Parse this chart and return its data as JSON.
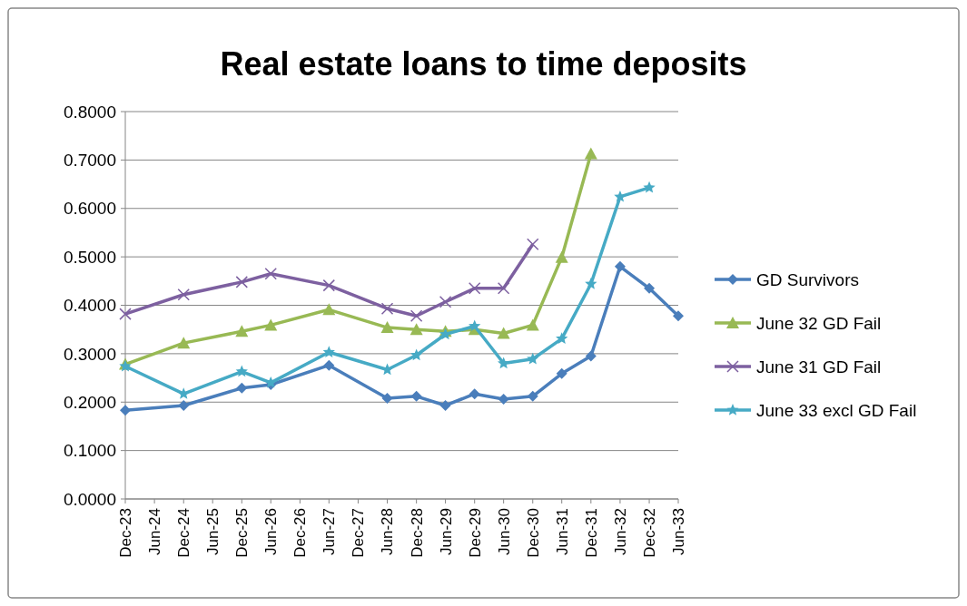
{
  "chart_data": {
    "type": "line",
    "title": "Real estate loans to time deposits",
    "x": [
      "1923-12",
      "1924-12",
      "1925-12",
      "1926-06",
      "1927-06",
      "1928-06",
      "1928-12",
      "1929-06",
      "1929-12",
      "1930-06",
      "1930-12",
      "1931-06",
      "1931-12",
      "1932-06",
      "1932-12",
      "1933-06"
    ],
    "series": [
      {
        "name": "GD Survivors",
        "color": "#4a7ebb",
        "marker": "diamond",
        "values": [
          0.183,
          0.193,
          0.229,
          0.236,
          0.276,
          0.208,
          0.212,
          0.193,
          0.217,
          0.206,
          0.212,
          0.259,
          0.295,
          0.48,
          0.435,
          0.378
        ]
      },
      {
        "name": "June 32 GD Fail",
        "color": "#98b954",
        "marker": "triangle",
        "values": [
          0.278,
          0.322,
          0.346,
          0.359,
          0.391,
          0.354,
          0.35,
          0.346,
          0.35,
          0.342,
          0.359,
          0.499,
          0.713,
          null,
          null,
          null
        ]
      },
      {
        "name": "June 31 GD Fail",
        "color": "#7d60a0",
        "marker": "cross",
        "values": [
          0.382,
          0.422,
          0.448,
          0.465,
          0.441,
          0.393,
          0.378,
          0.407,
          0.435,
          0.435,
          0.526,
          null,
          null,
          null,
          null,
          null
        ]
      },
      {
        "name": "June 33 excl GD Fail",
        "color": "#46aac5",
        "marker": "star",
        "values": [
          0.274,
          0.217,
          0.263,
          0.24,
          0.303,
          0.267,
          0.297,
          0.34,
          0.357,
          0.28,
          0.289,
          0.331,
          0.444,
          0.624,
          0.643,
          null
        ]
      }
    ],
    "xlim": [
      "1923-12",
      "1933-06"
    ],
    "xticks": [
      {
        "value": "1923-12",
        "label": "Dec-23"
      },
      {
        "value": "1924-06",
        "label": "Jun-24"
      },
      {
        "value": "1924-12",
        "label": "Dec-24"
      },
      {
        "value": "1925-06",
        "label": "Jun-25"
      },
      {
        "value": "1925-12",
        "label": "Dec-25"
      },
      {
        "value": "1926-06",
        "label": "Jun-26"
      },
      {
        "value": "1926-12",
        "label": "Dec-26"
      },
      {
        "value": "1927-06",
        "label": "Jun-27"
      },
      {
        "value": "1927-12",
        "label": "Dec-27"
      },
      {
        "value": "1928-06",
        "label": "Jun-28"
      },
      {
        "value": "1928-12",
        "label": "Dec-28"
      },
      {
        "value": "1929-06",
        "label": "Jun-29"
      },
      {
        "value": "1929-12",
        "label": "Dec-29"
      },
      {
        "value": "1930-06",
        "label": "Jun-30"
      },
      {
        "value": "1930-12",
        "label": "Dec-30"
      },
      {
        "value": "1931-06",
        "label": "Jun-31"
      },
      {
        "value": "1931-12",
        "label": "Dec-31"
      },
      {
        "value": "1932-06",
        "label": "Jun-32"
      },
      {
        "value": "1932-12",
        "label": "Dec-32"
      },
      {
        "value": "1933-06",
        "label": "Jun-33"
      }
    ],
    "ylim": [
      0,
      0.8
    ],
    "yticks": [
      {
        "value": 0,
        "label": "0.0000"
      },
      {
        "value": 0.1,
        "label": "0.1000"
      },
      {
        "value": 0.2,
        "label": "0.2000"
      },
      {
        "value": 0.3,
        "label": "0.3000"
      },
      {
        "value": 0.4,
        "label": "0.4000"
      },
      {
        "value": 0.5,
        "label": "0.5000"
      },
      {
        "value": 0.6,
        "label": "0.6000"
      },
      {
        "value": 0.7,
        "label": "0.7000"
      },
      {
        "value": 0.8,
        "label": "0.8000"
      }
    ],
    "grid": "y",
    "legend": "right",
    "line_style": "solid"
  }
}
